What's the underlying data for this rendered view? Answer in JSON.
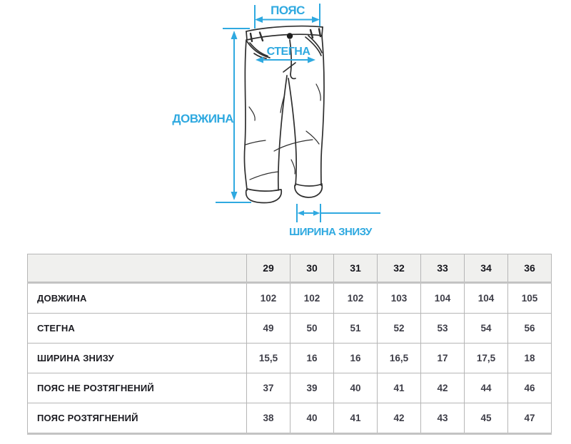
{
  "diagram": {
    "accent_color": "#2fa9e0",
    "line_color": "#2e2e2e",
    "labels": {
      "waist": "ПОЯС",
      "hips": "СТЕГНА",
      "length": "ДОВЖИНА",
      "bottom_width": "ШИРИНА ЗНИЗУ"
    }
  },
  "size_table": {
    "sizes": [
      "29",
      "30",
      "31",
      "32",
      "33",
      "34",
      "36"
    ],
    "rows": [
      {
        "label": "ДОВЖИНА",
        "values": [
          "102",
          "102",
          "102",
          "103",
          "104",
          "104",
          "105"
        ]
      },
      {
        "label": "СТЕГНА",
        "values": [
          "49",
          "50",
          "51",
          "52",
          "53",
          "54",
          "56"
        ]
      },
      {
        "label": "ШИРИНА ЗНИЗУ",
        "values": [
          "15,5",
          "16",
          "16",
          "16,5",
          "17",
          "17,5",
          "18"
        ]
      },
      {
        "label": "ПОЯС НЕ РОЗТЯГНЕНИЙ",
        "values": [
          "37",
          "39",
          "40",
          "41",
          "42",
          "44",
          "46"
        ]
      },
      {
        "label": "ПОЯС РОЗТЯГНЕНИЙ",
        "values": [
          "38",
          "40",
          "41",
          "42",
          "43",
          "45",
          "47"
        ]
      }
    ]
  }
}
